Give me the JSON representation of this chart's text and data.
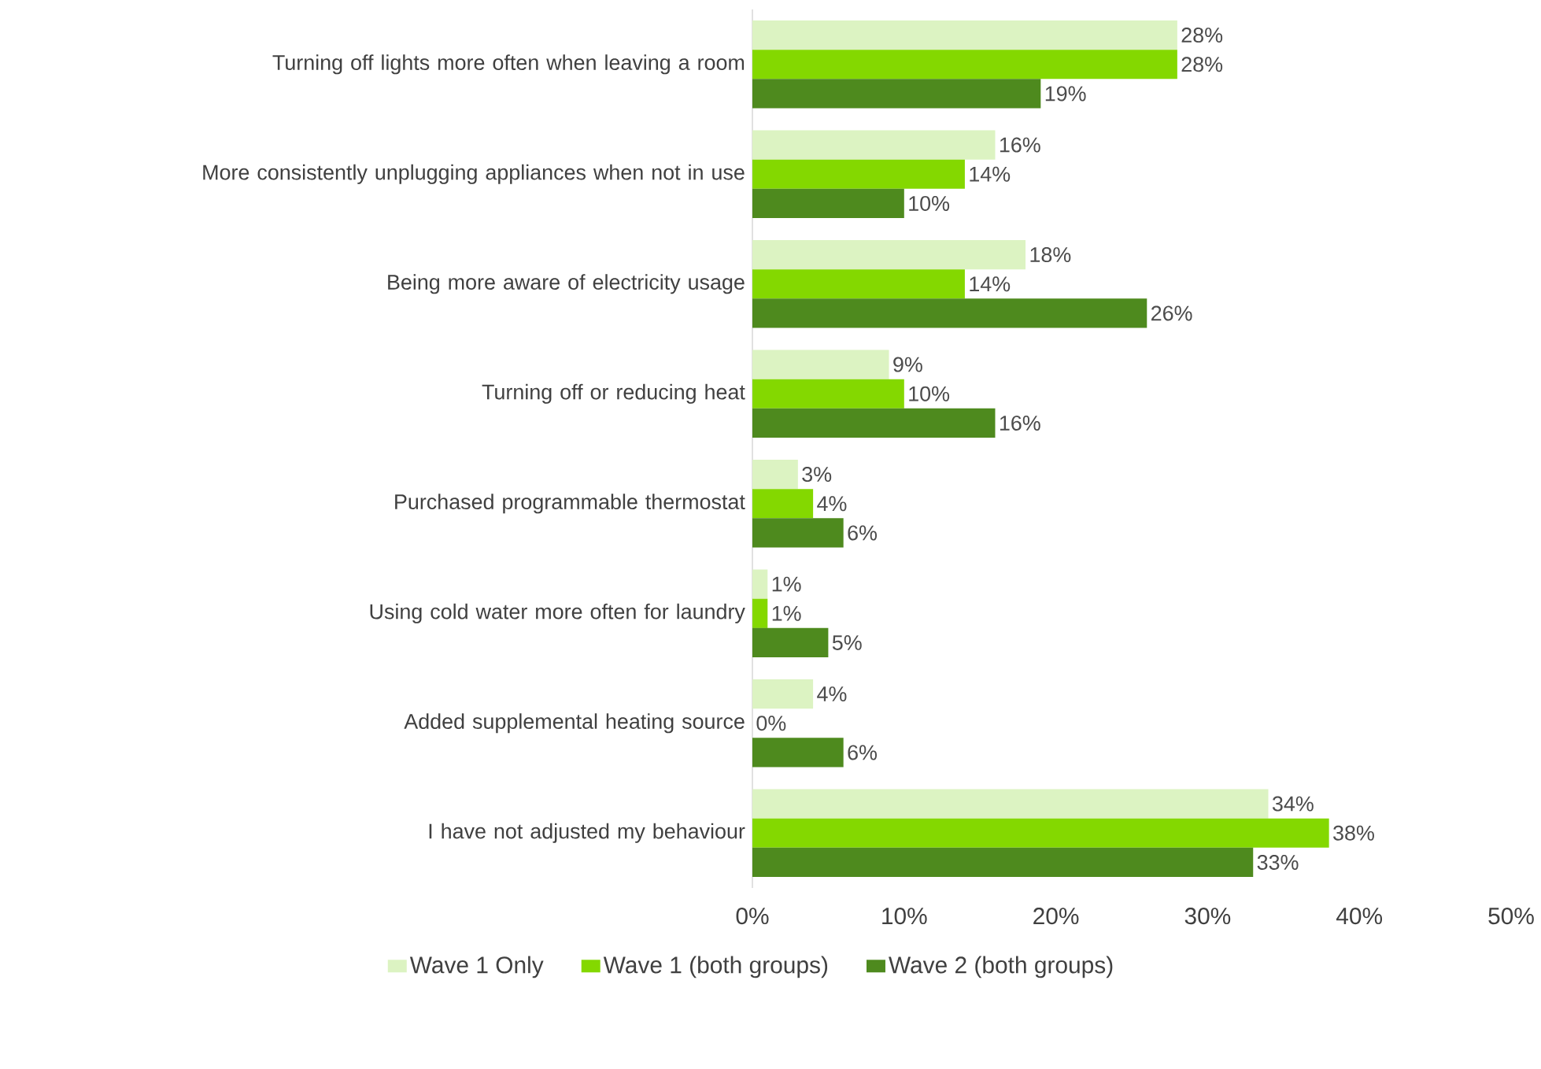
{
  "chart_data": {
    "type": "bar",
    "orientation": "horizontal",
    "categories": [
      "Turning off lights more often when leaving a room",
      "More consistently unplugging appliances when not in use",
      "Being more aware of electricity usage",
      "Turning off or reducing heat",
      "Purchased programmable thermostat",
      "Using cold water more often for laundry",
      "Added supplemental heating source",
      "I have not adjusted my behaviour"
    ],
    "series": [
      {
        "name": "Wave 1 Only",
        "color": "#dcf3c2",
        "values": [
          28,
          16,
          18,
          9,
          3,
          1,
          4,
          34
        ],
        "value_labels": [
          "28%",
          "16%",
          "18%",
          "9%",
          "3%",
          "1%",
          "4%",
          "34%"
        ]
      },
      {
        "name": "Wave 1 (both groups)",
        "color": "#84d800",
        "values": [
          28,
          14,
          14,
          10,
          4,
          1,
          0,
          38
        ],
        "value_labels": [
          "28%",
          "14%",
          "14%",
          "10%",
          "4%",
          "1%",
          "0%",
          "38%"
        ]
      },
      {
        "name": "Wave 2 (both groups)",
        "color": "#4e8a1e",
        "values": [
          19,
          10,
          26,
          16,
          6,
          5,
          6,
          33
        ],
        "value_labels": [
          "19%",
          "10%",
          "26%",
          "16%",
          "6%",
          "5%",
          "6%",
          "33%"
        ]
      }
    ],
    "xlim": [
      0,
      50
    ],
    "xticks": [
      {
        "value": 0,
        "label": "0%"
      },
      {
        "value": 10,
        "label": "10%"
      },
      {
        "value": 20,
        "label": "20%"
      },
      {
        "value": 30,
        "label": "30%"
      },
      {
        "value": 40,
        "label": "40%"
      },
      {
        "value": 50,
        "label": "50%"
      }
    ],
    "legend": "bottom"
  }
}
